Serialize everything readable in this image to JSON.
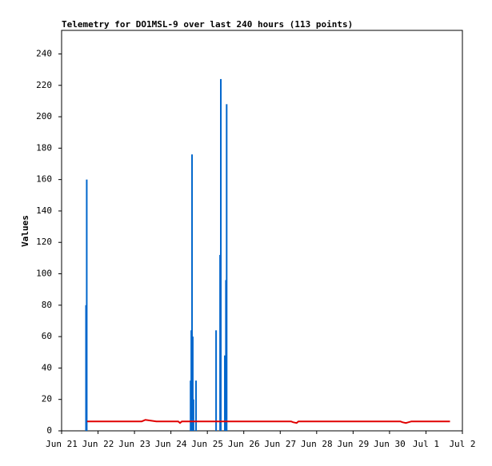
{
  "chart_data": {
    "type": "bar",
    "title": "Telemetry for DO1MSL-9 over last 240 hours (113 points)",
    "y_label": "Values",
    "xlim": [
      0,
      11
    ],
    "xticks": [
      {
        "value": 0,
        "label": "Jun 21"
      },
      {
        "value": 1,
        "label": "Jun 22"
      },
      {
        "value": 2,
        "label": "Jun 23"
      },
      {
        "value": 3,
        "label": "Jun 24"
      },
      {
        "value": 4,
        "label": "Jun 25"
      },
      {
        "value": 5,
        "label": "Jun 26"
      },
      {
        "value": 6,
        "label": "Jun 27"
      },
      {
        "value": 7,
        "label": "Jun 28"
      },
      {
        "value": 8,
        "label": "Jun 29"
      },
      {
        "value": 9,
        "label": "Jun 30"
      },
      {
        "value": 10,
        "label": "Jul 1"
      },
      {
        "value": 11,
        "label": "Jul 2"
      }
    ],
    "ylim": [
      0,
      255
    ],
    "yticks": [
      0,
      20,
      40,
      60,
      80,
      100,
      120,
      140,
      160,
      180,
      200,
      220,
      240
    ],
    "series": [
      {
        "type": "bar",
        "color": "#0066cc",
        "x": [
          0.67,
          0.69,
          3.54,
          3.56,
          3.58,
          3.6,
          3.62,
          3.69,
          4.24,
          4.35,
          4.37,
          4.48,
          4.51,
          4.53
        ],
        "values": [
          80,
          160,
          32,
          64,
          176,
          60,
          20,
          32,
          64,
          112,
          224,
          48,
          96,
          208
        ]
      },
      {
        "type": "line",
        "color": "#e00000",
        "x": [
          0.7,
          2.2,
          2.3,
          2.45,
          2.6,
          3.2,
          3.25,
          3.3,
          6.3,
          6.35,
          6.45,
          6.5,
          9.3,
          9.35,
          9.45,
          9.6,
          10.66
        ],
        "values": [
          6,
          6,
          7,
          6.5,
          6,
          6,
          5,
          6,
          6,
          5.5,
          5,
          6,
          6,
          5.5,
          5,
          6,
          6
        ]
      }
    ]
  }
}
